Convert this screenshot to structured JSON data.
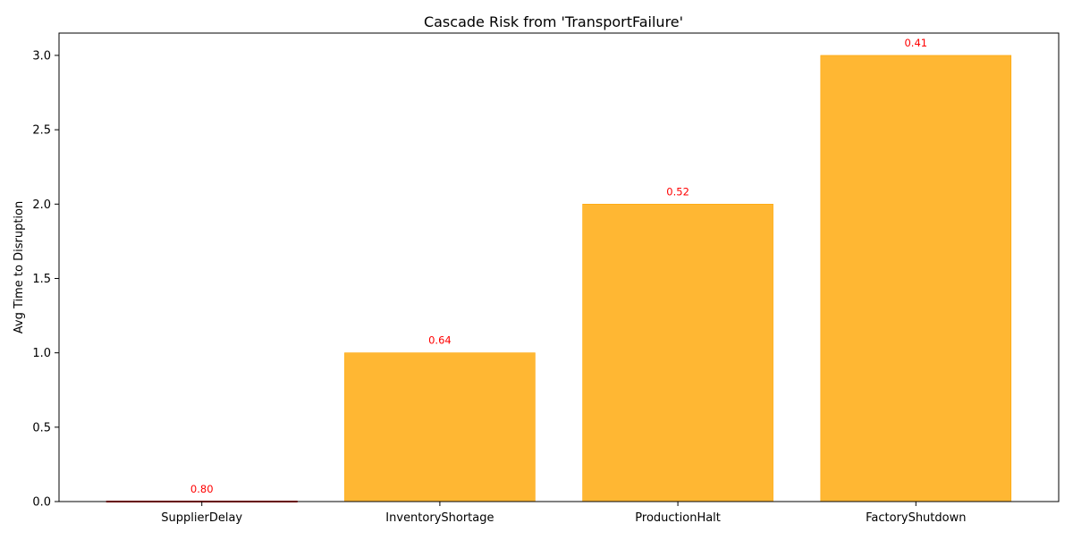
{
  "chart_data": {
    "type": "bar",
    "title": "Cascade Risk from 'TransportFailure'",
    "xlabel": "",
    "ylabel": "Avg Time to Disruption",
    "categories": [
      "SupplierDelay",
      "InventoryShortage",
      "ProductionHalt",
      "FactoryShutdown"
    ],
    "values": [
      0,
      1,
      2,
      3
    ],
    "annotations": [
      "0.80",
      "0.64",
      "0.52",
      "0.41"
    ],
    "ylim": [
      0,
      3.15
    ],
    "yticks": [
      0.0,
      0.5,
      1.0,
      1.5,
      2.0,
      2.5,
      3.0
    ],
    "ytick_labels": [
      "0.0",
      "0.5",
      "1.0",
      "1.5",
      "2.0",
      "2.5",
      "3.0"
    ],
    "grid": false,
    "colors": {
      "bar": "#FFB733",
      "bar_edge": "#FFA500",
      "zero_bar_edge": "#CC0000",
      "annotation": "#FF0000",
      "axis": "#000000",
      "text": "#000000"
    }
  }
}
